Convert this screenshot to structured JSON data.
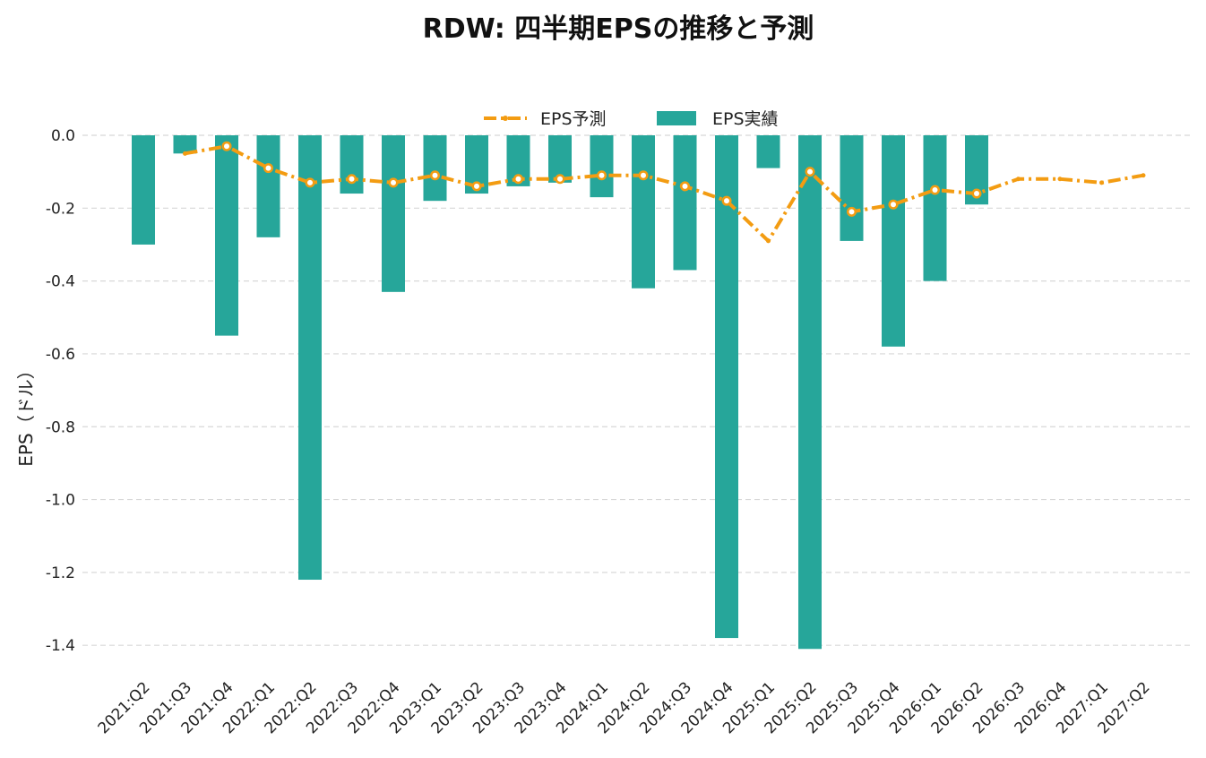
{
  "chart_data": {
    "type": "bar",
    "title": "RDW: 四半期EPSの推移と予測",
    "xlabel": "",
    "ylabel": "EPS（ドル）",
    "ylim": [
      -1.5,
      0.0
    ],
    "yticks": [
      0.0,
      -0.2,
      -0.4,
      -0.6,
      -0.8,
      -1.0,
      -1.2,
      -1.4
    ],
    "ytick_labels": [
      "0.0",
      "-0.2",
      "-0.4",
      "-0.6",
      "-0.8",
      "-1.0",
      "-1.2",
      "-1.4"
    ],
    "grid": true,
    "legend_position": "top-center",
    "categories": [
      "2021:Q2",
      "2021:Q3",
      "2021:Q4",
      "2022:Q1",
      "2022:Q2",
      "2022:Q3",
      "2022:Q4",
      "2023:Q1",
      "2023:Q2",
      "2023:Q3",
      "2023:Q4",
      "2024:Q1",
      "2024:Q2",
      "2024:Q3",
      "2024:Q4",
      "2025:Q1",
      "2025:Q2",
      "2025:Q3",
      "2025:Q4",
      "2026:Q1",
      "2026:Q2",
      "2026:Q3",
      "2026:Q4",
      "2027:Q1",
      "2027:Q2"
    ],
    "series": [
      {
        "name": "EPS予測",
        "kind": "line",
        "color": "#f39c12",
        "values": [
          null,
          -0.05,
          -0.03,
          -0.09,
          -0.13,
          -0.12,
          -0.13,
          -0.11,
          -0.14,
          -0.12,
          -0.12,
          -0.11,
          -0.11,
          -0.14,
          -0.18,
          -0.29,
          -0.1,
          -0.21,
          -0.19,
          -0.15,
          -0.16,
          -0.12,
          -0.12,
          -0.13,
          -0.11
        ],
        "marked": [
          false,
          false,
          true,
          true,
          true,
          true,
          true,
          true,
          true,
          true,
          true,
          true,
          true,
          true,
          true,
          false,
          true,
          true,
          true,
          true,
          true,
          false,
          false,
          false,
          false
        ]
      },
      {
        "name": "EPS実績",
        "kind": "bar",
        "color": "#26a69a",
        "values": [
          -0.3,
          -0.05,
          -0.55,
          -0.28,
          -1.22,
          -0.16,
          -0.43,
          -0.18,
          -0.16,
          -0.14,
          -0.13,
          -0.17,
          -0.42,
          -0.37,
          -1.38,
          -0.09,
          -1.41,
          -0.29,
          -0.58,
          -0.4,
          -0.19,
          null,
          null,
          null,
          null
        ]
      }
    ]
  }
}
